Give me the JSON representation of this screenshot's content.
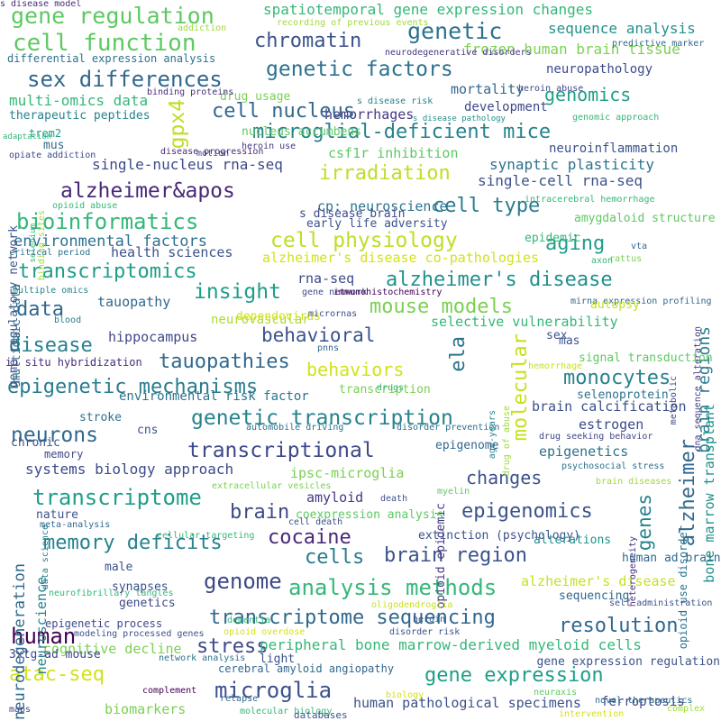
{
  "words": [
    {
      "text": "gene regulation",
      "color": "#5ec962"
    },
    {
      "text": "spatiotemporal gene expression changes",
      "color": "#35b779"
    },
    {
      "text": "genetic",
      "color": "#2c728e"
    },
    {
      "text": "cell function",
      "color": "#5ec962"
    },
    {
      "text": "chromatin",
      "color": "#3b528b"
    },
    {
      "text": "sequence analysis",
      "color": "#21918c"
    },
    {
      "text": "frozen human brain tissue",
      "color": "#7ad151"
    },
    {
      "text": "genetic factors",
      "color": "#2c728e"
    },
    {
      "text": "sex differences",
      "color": "#31688e"
    },
    {
      "text": "neuropathology",
      "color": "#3e4989"
    },
    {
      "text": "genomics",
      "color": "#1f9e89"
    },
    {
      "text": "mortality",
      "color": "#31688e"
    },
    {
      "text": "multi-omics data",
      "color": "#35b779"
    },
    {
      "text": "hemorrhages",
      "color": "#443983"
    },
    {
      "text": "development",
      "color": "#3e4989"
    },
    {
      "text": "cell nucleus",
      "color": "#31688e"
    },
    {
      "text": "microglial-deficient mice",
      "color": "#26828e"
    },
    {
      "text": "gpx4",
      "color": "#bddf26"
    },
    {
      "text": "csf1r inhibition",
      "color": "#5ec962"
    },
    {
      "text": "neuroinflammation",
      "color": "#3b528b"
    },
    {
      "text": "synaptic plasticity",
      "color": "#2c728e"
    },
    {
      "text": "single-nucleus rna-seq",
      "color": "#3e4989"
    },
    {
      "text": "irradiation",
      "color": "#bddf26"
    },
    {
      "text": "single-cell rna-seq",
      "color": "#3b528b"
    },
    {
      "text": "alzheimer&apos",
      "color": "#482878"
    },
    {
      "text": "cell type",
      "color": "#287c8e"
    },
    {
      "text": "cp: neuroscience",
      "color": "#2c728e"
    },
    {
      "text": "bioinformatics",
      "color": "#35b779"
    },
    {
      "text": "cell physiology",
      "color": "#bddf26"
    },
    {
      "text": "aging",
      "color": "#1f9e89"
    },
    {
      "text": "environmental factors",
      "color": "#2c728e"
    },
    {
      "text": "health sciences",
      "color": "#3b528b"
    },
    {
      "text": "transcriptomics",
      "color": "#1f9e89"
    },
    {
      "text": "alzheimer's disease co-pathologies",
      "color": "#d2e21b"
    },
    {
      "text": "alzheimer's disease",
      "color": "#21918c"
    },
    {
      "text": "insight",
      "color": "#1f9e89"
    },
    {
      "text": "rna-seq",
      "color": "#3e4989"
    },
    {
      "text": "tauopathy",
      "color": "#31688e"
    },
    {
      "text": "data",
      "color": "#31688e"
    },
    {
      "text": "mouse models",
      "color": "#7ad151"
    },
    {
      "text": "neurovascular",
      "color": "#addc30"
    },
    {
      "text": "selective vulnerability",
      "color": "#35b779"
    },
    {
      "text": "hippocampus",
      "color": "#3e4989"
    },
    {
      "text": "behavioral",
      "color": "#3b528b"
    },
    {
      "text": "disease",
      "color": "#26828e"
    },
    {
      "text": "ela",
      "color": "#2c728e"
    },
    {
      "text": "behaviors",
      "color": "#d2e21b"
    },
    {
      "text": "tauopathies",
      "color": "#31688e"
    },
    {
      "text": "molecular",
      "color": "#c8e020"
    },
    {
      "text": "monocytes",
      "color": "#26828e"
    },
    {
      "text": "epigenetic mechanisms",
      "color": "#287c8e"
    },
    {
      "text": "environmental risk factor",
      "color": "#2c728e"
    },
    {
      "text": "genetic transcription",
      "color": "#26828e"
    },
    {
      "text": "brain calcification",
      "color": "#3b528b"
    },
    {
      "text": "neurons",
      "color": "#31688e"
    },
    {
      "text": "estrogen",
      "color": "#3e4989"
    },
    {
      "text": "transcriptional",
      "color": "#3e4989"
    },
    {
      "text": "epigenetics",
      "color": "#2c728e"
    },
    {
      "text": "systems biology approach",
      "color": "#3e4989"
    },
    {
      "text": "ipsc-microglia",
      "color": "#7ad151"
    },
    {
      "text": "changes",
      "color": "#3b528b"
    },
    {
      "text": "transcriptome",
      "color": "#1f9e89"
    },
    {
      "text": "amyloid",
      "color": "#443983"
    },
    {
      "text": "epigenomics",
      "color": "#3b528b"
    },
    {
      "text": "brain",
      "color": "#3e4989"
    },
    {
      "text": "memory deficits",
      "color": "#26828e"
    },
    {
      "text": "cocaine",
      "color": "#482878"
    },
    {
      "text": "cells",
      "color": "#287c8e"
    },
    {
      "text": "brain region",
      "color": "#3b528b"
    },
    {
      "text": "genome",
      "color": "#3e4989"
    },
    {
      "text": "analysis methods",
      "color": "#35b779"
    },
    {
      "text": "alzheimer's disease",
      "color": "#c8e020"
    },
    {
      "text": "transcriptome sequencing",
      "color": "#31688e"
    },
    {
      "text": "resolution",
      "color": "#31688e"
    },
    {
      "text": "human",
      "color": "#440154"
    },
    {
      "text": "stress",
      "color": "#3e4989"
    },
    {
      "text": "peripheral bone marrow-derived myeloid cells",
      "color": "#35b779"
    },
    {
      "text": "cognitive decline",
      "color": "#7ad151"
    },
    {
      "text": "gene expression",
      "color": "#1f9e89"
    },
    {
      "text": "atac-seq",
      "color": "#d2e21b"
    },
    {
      "text": "microglia",
      "color": "#3b528b"
    },
    {
      "text": "human pathological specimens",
      "color": "#3b528b"
    },
    {
      "text": "biomarkers",
      "color": "#7ad151"
    },
    {
      "text": "ferroptosis",
      "color": "#3e4989"
    },
    {
      "text": "alzheimer",
      "color": "#31688e"
    },
    {
      "text": "genes",
      "color": "#26828e"
    },
    {
      "text": "brain regions",
      "color": "#287c8e"
    },
    {
      "text": "bone marrow transplant",
      "color": "#21918c"
    },
    {
      "text": "neurodegeneration",
      "color": "#31688e"
    },
    {
      "text": "neuroscience",
      "color": "#26828e"
    },
    {
      "text": "addiction",
      "color": "#9fda3a"
    },
    {
      "text": "recording of previous events",
      "color": "#9fda3a"
    },
    {
      "text": "predictive marker",
      "color": "#31688e"
    },
    {
      "text": "neurodegenerative disorders",
      "color": "#443983"
    },
    {
      "text": "differential expression analysis",
      "color": "#2c728e"
    },
    {
      "text": "heroin abuse",
      "color": "#3e4989"
    },
    {
      "text": "drug usage",
      "color": "#7ad151"
    },
    {
      "text": "binding proteins",
      "color": "#472d7b"
    },
    {
      "text": "therapeutic peptides",
      "color": "#26828e"
    },
    {
      "text": "s disease risk",
      "color": "#26828e"
    },
    {
      "text": "trem2",
      "color": "#1f9e89"
    },
    {
      "text": "s disease pathology",
      "color": "#21918c"
    },
    {
      "text": "genomic approach",
      "color": "#35b779"
    },
    {
      "text": "nucleus accumbens",
      "color": "#5ec962"
    },
    {
      "text": "adaptation",
      "color": "#35b779"
    },
    {
      "text": "mus",
      "color": "#31688e"
    },
    {
      "text": "opiate addiction",
      "color": "#3e4989"
    },
    {
      "text": "heroin use",
      "color": "#443983"
    },
    {
      "text": "motion",
      "color": "#3b528b"
    },
    {
      "text": "disease progression",
      "color": "#482878"
    },
    {
      "text": "gene regulatory network",
      "color": "#3b528b"
    },
    {
      "text": "selenium",
      "color": "#35b779"
    },
    {
      "text": "binding sites",
      "color": "#a0da39"
    },
    {
      "text": "opioid abuse",
      "color": "#35b779"
    },
    {
      "text": "s disease brain",
      "color": "#3e4989"
    },
    {
      "text": "intracerebral hemorrhage",
      "color": "#35b779"
    },
    {
      "text": "early life adversity",
      "color": "#3b528b"
    },
    {
      "text": "amygdaloid structure",
      "color": "#5ec962"
    },
    {
      "text": "epidemic",
      "color": "#35b779"
    },
    {
      "text": "vta",
      "color": "#31688e"
    },
    {
      "text": "rattus",
      "color": "#7ad151"
    },
    {
      "text": "axon",
      "color": "#35b779"
    },
    {
      "text": "multiomic data",
      "color": "#2c728e"
    },
    {
      "text": "critical period",
      "color": "#2c728e"
    },
    {
      "text": "multiple omics",
      "color": "#26828e"
    },
    {
      "text": "gene network",
      "color": "#3e4989"
    },
    {
      "text": "immunohistochemistry",
      "color": "#440154"
    },
    {
      "text": "mirna expression profiling",
      "color": "#31688e"
    },
    {
      "text": "autopsy",
      "color": "#c2df23"
    },
    {
      "text": "blood",
      "color": "#287c8e"
    },
    {
      "text": "dependovirus",
      "color": "#d2e21b"
    },
    {
      "text": "micrornas",
      "color": "#3b528b"
    },
    {
      "text": "metabolic",
      "color": "#3e4989"
    },
    {
      "text": "dna sequence alteration",
      "color": "#443983"
    },
    {
      "text": "sex",
      "color": "#3b528b"
    },
    {
      "text": "mas",
      "color": "#3b528b"
    },
    {
      "text": "pnns",
      "color": "#31688e"
    },
    {
      "text": "signal transduction",
      "color": "#5ec962"
    },
    {
      "text": "hemorrhage",
      "color": "#c8e020"
    },
    {
      "text": "in situ hybridization",
      "color": "#472d7b"
    },
    {
      "text": "transcription",
      "color": "#7ad151"
    },
    {
      "text": "drugs",
      "color": "#35b779"
    },
    {
      "text": "drug of abuse",
      "color": "#9fda3a"
    },
    {
      "text": "age-years",
      "color": "#26828e"
    },
    {
      "text": "selenoprotein",
      "color": "#2c728e"
    },
    {
      "text": "stroke",
      "color": "#2c728e"
    },
    {
      "text": "cns",
      "color": "#3b528b"
    },
    {
      "text": "chronic",
      "color": "#3b528b"
    },
    {
      "text": "automobile driving",
      "color": "#2c728e"
    },
    {
      "text": "disorder prevention",
      "color": "#2c728e"
    },
    {
      "text": "epigenome",
      "color": "#31688e"
    },
    {
      "text": "drug seeking behavior",
      "color": "#3e4989"
    },
    {
      "text": "memory",
      "color": "#3e4989"
    },
    {
      "text": "psychosocial stress",
      "color": "#2c728e"
    },
    {
      "text": "extracellular vesicles",
      "color": "#7ad151"
    },
    {
      "text": "opioid epidemic",
      "color": "#443983"
    },
    {
      "text": "death",
      "color": "#3b528b"
    },
    {
      "text": "myelin",
      "color": "#5ec962"
    },
    {
      "text": "brain diseases",
      "color": "#a0da39"
    },
    {
      "text": "data science",
      "color": "#287c8e"
    },
    {
      "text": "nature",
      "color": "#3b528b"
    },
    {
      "text": "coexpression analysis",
      "color": "#5ec962"
    },
    {
      "text": "extinction (psychology)",
      "color": "#3b528b"
    },
    {
      "text": "alterations",
      "color": "#21918c"
    },
    {
      "text": "cell death",
      "color": "#3b528b"
    },
    {
      "text": "heterogeneity",
      "color": "#472d7b"
    },
    {
      "text": "opioid use disorder",
      "color": "#2c728e"
    },
    {
      "text": "meta-analysis",
      "color": "#31688e"
    },
    {
      "text": "neurofibrillary tangles",
      "color": "#35b779"
    },
    {
      "text": "cellular targeting",
      "color": "#35b779"
    },
    {
      "text": "male",
      "color": "#3b528b"
    },
    {
      "text": "human ad brain",
      "color": "#31688e"
    },
    {
      "text": "synapses",
      "color": "#3b528b"
    },
    {
      "text": "sequencing",
      "color": "#31688e"
    },
    {
      "text": "genetics",
      "color": "#3e4989"
    },
    {
      "text": "dementia",
      "color": "#35b779"
    },
    {
      "text": "heroin",
      "color": "#3b528b"
    },
    {
      "text": "oligodendroglia",
      "color": "#c8e020"
    },
    {
      "text": "self administration",
      "color": "#3b528b"
    },
    {
      "text": "epigenetic process",
      "color": "#3e4989"
    },
    {
      "text": "modeling processed genes",
      "color": "#3b528b"
    },
    {
      "text": "opioid overdose",
      "color": "#d2e21b"
    },
    {
      "text": "disorder risk",
      "color": "#3b528b"
    },
    {
      "text": "3xtg-ad mouse",
      "color": "#3e4989"
    },
    {
      "text": "network analysis",
      "color": "#2c728e"
    },
    {
      "text": "light",
      "color": "#3b528b"
    },
    {
      "text": "cerebral amyloid angiopathy",
      "color": "#31688e"
    },
    {
      "text": "gene expression regulation",
      "color": "#3b528b"
    },
    {
      "text": "complement",
      "color": "#440154"
    },
    {
      "text": "relapse",
      "color": "#31688e"
    },
    {
      "text": "biology",
      "color": "#d2e21b"
    },
    {
      "text": "neuraxis",
      "color": "#5ec962"
    },
    {
      "text": "novel therapeutics",
      "color": "#31688e"
    },
    {
      "text": "complex",
      "color": "#a0da39"
    },
    {
      "text": "maps",
      "color": "#3e4989"
    },
    {
      "text": "molecular biology",
      "color": "#35b779"
    },
    {
      "text": "databases",
      "color": "#3b528b"
    },
    {
      "text": "intervention",
      "color": "#d2e21b"
    },
    {
      "text": "s disease model",
      "color": "#472d7b"
    }
  ]
}
